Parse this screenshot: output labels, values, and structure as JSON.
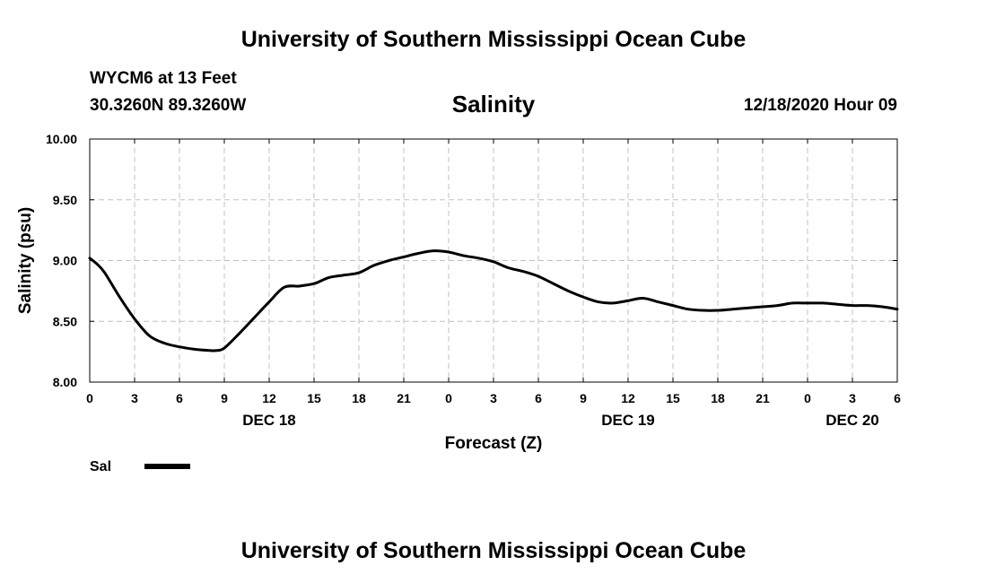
{
  "header": {
    "title": "University of Southern Mississippi Ocean Cube",
    "station": "WYCM6 at 13 Feet",
    "coords": "30.3260N 89.3260W",
    "datetime": "12/18/2020 Hour 09",
    "footer_title": "University of Southern Mississippi Ocean Cube"
  },
  "chart_data": {
    "type": "line",
    "title": "Salinity",
    "xlabel": "Forecast (Z)",
    "ylabel": "Salinity (psu)",
    "xlim": [
      0,
      54
    ],
    "ylim": [
      8.0,
      10.0
    ],
    "grid": true,
    "x_ticks": [
      0,
      3,
      6,
      9,
      12,
      15,
      18,
      21,
      24,
      27,
      30,
      33,
      36,
      39,
      42,
      45,
      48,
      51,
      54
    ],
    "x_tick_labels": [
      "0",
      "3",
      "6",
      "9",
      "12",
      "15",
      "18",
      "21",
      "0",
      "3",
      "6",
      "9",
      "12",
      "15",
      "18",
      "21",
      "0",
      "3",
      "6"
    ],
    "y_ticks": [
      8.0,
      8.5,
      9.0,
      9.5,
      10.0
    ],
    "y_tick_labels": [
      "8.00",
      "8.50",
      "9.00",
      "9.50",
      "10.00"
    ],
    "date_labels": [
      {
        "x": 12,
        "label": "DEC 18"
      },
      {
        "x": 36,
        "label": "DEC 19"
      },
      {
        "x": 51,
        "label": "DEC 20"
      }
    ],
    "legend": {
      "position": "bottom-left",
      "label": "Sal"
    },
    "colors": {
      "line": "#000000",
      "grid": "#c0c0c0",
      "axis": "#000000"
    },
    "series": [
      {
        "name": "Sal",
        "x": [
          0,
          0.5,
          1,
          2,
          3,
          4,
          5,
          6,
          7,
          8,
          8.5,
          9,
          10,
          11,
          12,
          13,
          14,
          15,
          16,
          17,
          18,
          19,
          20,
          21,
          22,
          23,
          24,
          25,
          26,
          27,
          28,
          29,
          30,
          31,
          32,
          33,
          34,
          35,
          36,
          37,
          38,
          39,
          40,
          41,
          42,
          43,
          44,
          45,
          46,
          47,
          48,
          49,
          50,
          51,
          52,
          53,
          54
        ],
        "values": [
          9.02,
          8.97,
          8.9,
          8.7,
          8.52,
          8.38,
          8.32,
          8.29,
          8.27,
          8.26,
          8.26,
          8.28,
          8.4,
          8.53,
          8.66,
          8.78,
          8.79,
          8.81,
          8.86,
          8.88,
          8.9,
          8.96,
          9.0,
          9.03,
          9.06,
          9.08,
          9.07,
          9.04,
          9.02,
          8.99,
          8.94,
          8.91,
          8.87,
          8.81,
          8.75,
          8.7,
          8.66,
          8.65,
          8.67,
          8.69,
          8.66,
          8.63,
          8.6,
          8.59,
          8.59,
          8.6,
          8.61,
          8.62,
          8.63,
          8.65,
          8.65,
          8.65,
          8.64,
          8.63,
          8.63,
          8.62,
          8.6
        ]
      }
    ]
  }
}
